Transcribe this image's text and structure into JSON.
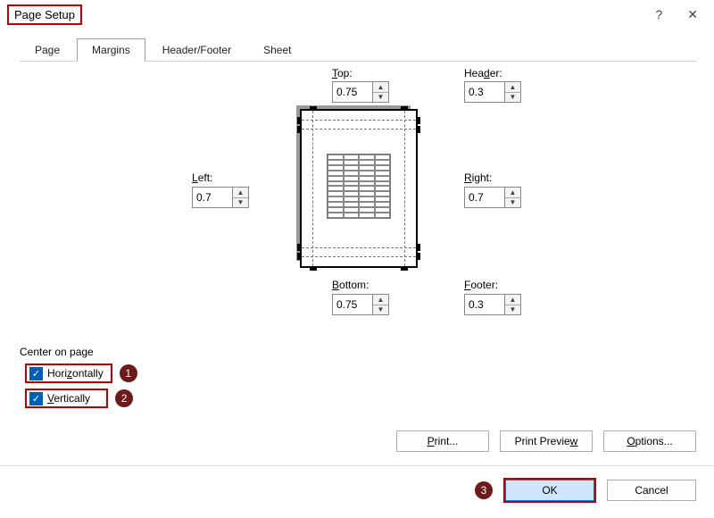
{
  "title": "Page Setup",
  "titlebar": {
    "help": "?",
    "close": "✕"
  },
  "tabs": {
    "page": "Page",
    "margins": "Margins",
    "header_footer": "Header/Footer",
    "sheet": "Sheet"
  },
  "margins": {
    "top_label_prefix": "T",
    "top_label_suffix": "op:",
    "top_value": "0.75",
    "header_label_prefix": "Hea",
    "header_label_suffix": "der:",
    "header_value": "0.3",
    "left_label_prefix": "L",
    "left_label_suffix": "eft:",
    "left_value": "0.7",
    "right_label_prefix": "R",
    "right_label_suffix": "ight:",
    "right_value": "0.7",
    "bottom_label_prefix": "B",
    "bottom_label_suffix": "ottom:",
    "bottom_value": "0.75",
    "footer_label_prefix": "F",
    "footer_label_suffix": "ooter:",
    "footer_value": "0.3"
  },
  "center": {
    "section_title": "Center on page",
    "horizontally_prefix": "Hori",
    "horizontally_ul": "z",
    "horizontally_suffix": "ontally",
    "vertically_ul": "V",
    "vertically_suffix": "ertically"
  },
  "annotations": {
    "n1": "1",
    "n2": "2",
    "n3": "3"
  },
  "buttons": {
    "print_ul": "P",
    "print_suffix": "rint...",
    "preview_prefix": "Print Previe",
    "preview_ul": "w",
    "options_ul": "O",
    "options_suffix": "ptions...",
    "ok": "OK",
    "cancel": "Cancel"
  },
  "colors": {
    "highlight_border": "#c00000",
    "circle_bg": "#6d1a1a",
    "ok_border": "#0078d7",
    "ok_bg": "#cfe6fb"
  }
}
